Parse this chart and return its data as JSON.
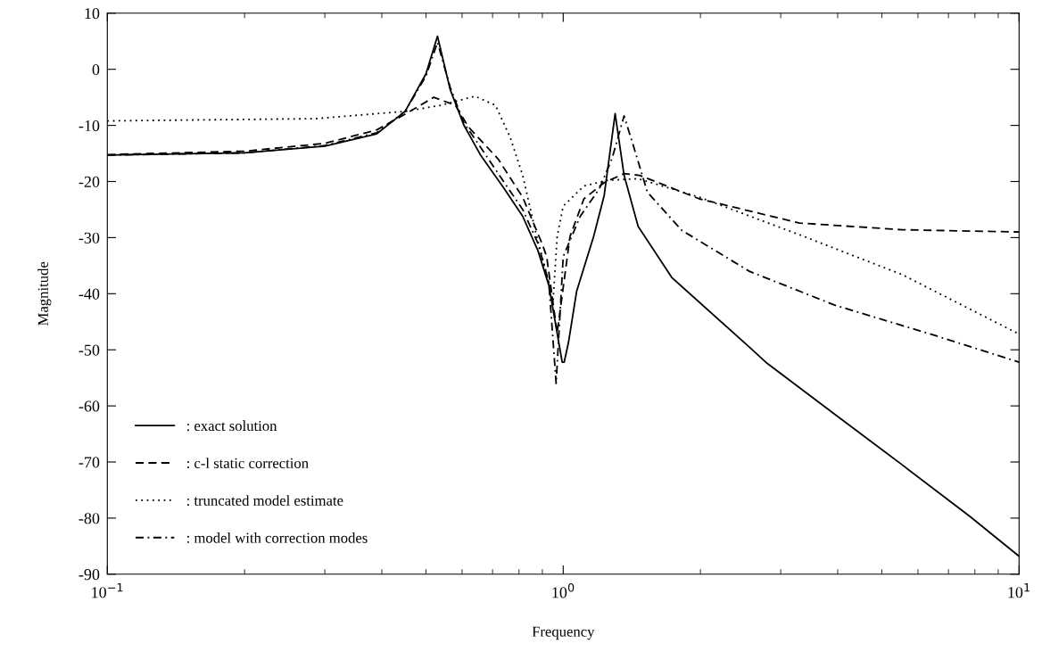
{
  "chart_data": {
    "type": "line",
    "xlabel": "Frequency",
    "ylabel": "Magnitude",
    "log": "x",
    "xlim": [
      0.1,
      10
    ],
    "xticks": [
      {
        "value": 0.1,
        "label": "10$^{−1}$"
      },
      {
        "value": 1,
        "label": "10$^{0}$"
      },
      {
        "value": 10,
        "label": "10$^{1}$"
      }
    ],
    "ylim": [
      -90,
      10
    ],
    "yticks": [
      -90,
      -80,
      -70,
      -60,
      -50,
      -40,
      -30,
      -20,
      -10,
      0,
      10
    ],
    "grid": false,
    "legend": "bottom left",
    "marker": "none",
    "series": [
      {
        "name": ": exact solution",
        "color": "#000000",
        "line_style": "solid",
        "x": [
          0.1,
          0.2,
          0.3,
          0.39,
          0.45,
          0.5,
          0.53,
          0.565,
          0.605,
          0.66,
          0.74,
          0.815,
          0.88,
          0.93,
          0.995,
          1.005,
          1.027,
          1.07,
          1.166,
          1.23,
          1.3,
          1.36,
          1.46,
          1.73,
          2.56,
          2.8,
          3.93,
          5.54,
          7.8,
          10
        ],
        "values": [
          -15.3,
          -14.9,
          -13.7,
          -11.5,
          -7.5,
          -0.8,
          5.9,
          -3.6,
          -9.9,
          -15.4,
          -21.1,
          -26.2,
          -32.3,
          -38.5,
          -52.2,
          -52.2,
          -48.7,
          -39.6,
          -29.8,
          -22.5,
          -7.9,
          -18.9,
          -28,
          -37.1,
          -49.5,
          -52.4,
          -61.4,
          -70.5,
          -79.7,
          -86.8
        ]
      },
      {
        "name": ": c-l static correction",
        "color": "#000000",
        "line_style": "dashed",
        "x": [
          0.1,
          0.2,
          0.3,
          0.39,
          0.45,
          0.52,
          0.58,
          0.62,
          0.72,
          0.815,
          0.9,
          0.92,
          0.97,
          1.035,
          1.11,
          1.23,
          1.36,
          1.47,
          1.99,
          3.3,
          5.54,
          10
        ],
        "values": [
          -15.2,
          -14.6,
          -13.2,
          -10.8,
          -8,
          -5,
          -6.4,
          -10.3,
          -16,
          -22.8,
          -31.2,
          -33.4,
          -47,
          -29.8,
          -23.1,
          -20.2,
          -18.6,
          -18.9,
          -23.1,
          -27.4,
          -28.6,
          -29
        ]
      },
      {
        "name": ": truncated model estimate",
        "color": "#000000",
        "line_style": "dotted",
        "x": [
          0.1,
          0.286,
          0.45,
          0.54,
          0.64,
          0.71,
          0.765,
          0.815,
          0.87,
          0.93,
          0.95,
          0.97,
          1.0,
          1.11,
          1.25,
          1.46,
          1.99,
          3.3,
          5.54,
          10
        ],
        "values": [
          -9.2,
          -8.8,
          -7.5,
          -6.4,
          -4.8,
          -6.4,
          -12.1,
          -18.9,
          -29,
          -38,
          -41.3,
          -29.8,
          -24.4,
          -20.8,
          -19.8,
          -19.5,
          -22.8,
          -29.5,
          -36.6,
          -47.2
        ]
      },
      {
        "name": ": model with correction modes",
        "color": "#000000",
        "line_style": "dashdot",
        "x": [
          0.1,
          0.2,
          0.3,
          0.39,
          0.45,
          0.5,
          0.53,
          0.565,
          0.605,
          0.66,
          0.74,
          0.815,
          0.88,
          0.93,
          0.965,
          1.0,
          1.09,
          1.2,
          1.28,
          1.36,
          1.43,
          1.53,
          1.82,
          2.56,
          3.93,
          6.57,
          10
        ],
        "values": [
          -15.3,
          -14.9,
          -13.6,
          -11.3,
          -7.5,
          -1.2,
          4.8,
          -3.2,
          -9.5,
          -14,
          -20,
          -25,
          -31,
          -38,
          -56,
          -33.4,
          -26.2,
          -21.3,
          -15.9,
          -8.3,
          -14,
          -21.9,
          -28.7,
          -36,
          -42,
          -47.5,
          -52.2
        ]
      }
    ]
  }
}
